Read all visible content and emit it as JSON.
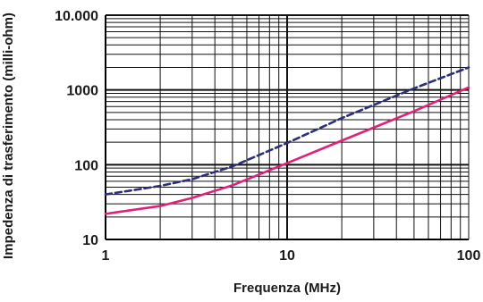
{
  "chart_data": {
    "type": "line",
    "xlabel": "Frequenza (MHz)",
    "ylabel": "Impedenza di trasferimento (milli-ohm)",
    "xscale": "log",
    "yscale": "log",
    "xlim": [
      1,
      100
    ],
    "ylim": [
      10,
      10000
    ],
    "grid": true,
    "x_ticks": [
      {
        "value": 1,
        "label": "1"
      },
      {
        "value": 10,
        "label": "10"
      },
      {
        "value": 100,
        "label": "100"
      }
    ],
    "y_ticks": [
      {
        "value": 10,
        "label": "10"
      },
      {
        "value": 100,
        "label": "100"
      },
      {
        "value": 1000,
        "label": "1000"
      },
      {
        "value": 10000,
        "label": "10.000"
      }
    ],
    "series": [
      {
        "style": "dashed",
        "color": "#2b2f7a",
        "x": [
          1,
          2,
          3,
          5,
          10,
          20,
          50,
          100
        ],
        "y": [
          40,
          52,
          64,
          95,
          195,
          420,
          1050,
          2000
        ]
      },
      {
        "style": "solid",
        "color": "#e0217a",
        "x": [
          1,
          2,
          3,
          5,
          10,
          20,
          50,
          100
        ],
        "y": [
          22,
          28,
          36,
          53,
          105,
          210,
          520,
          1080
        ]
      }
    ]
  }
}
